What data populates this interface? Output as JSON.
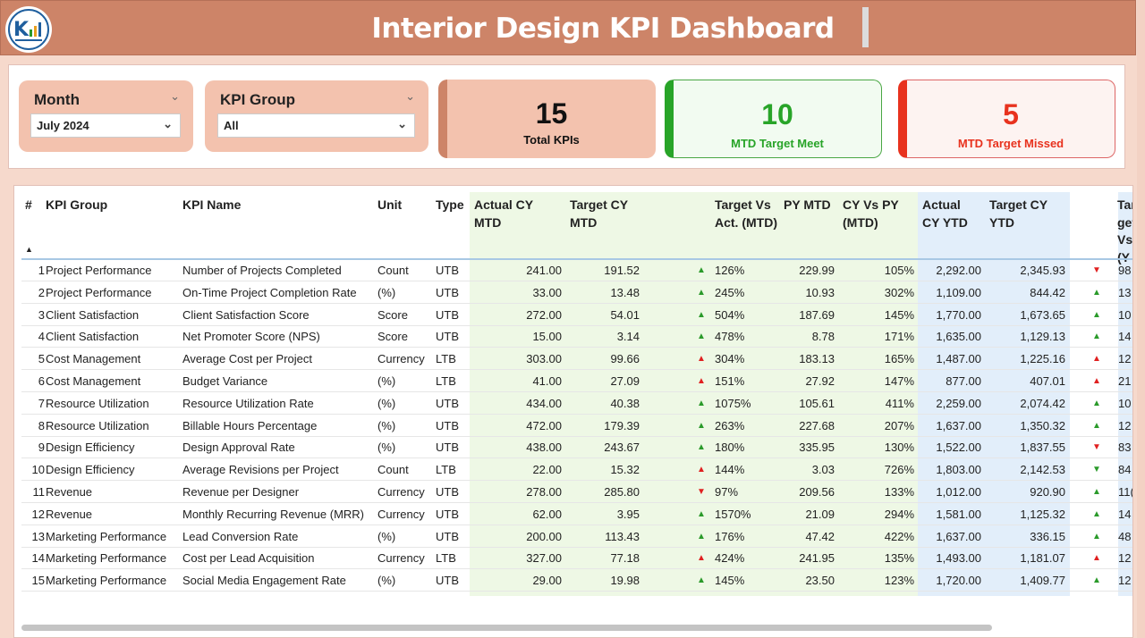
{
  "header": {
    "title": "Interior Design KPI Dashboard"
  },
  "filters": {
    "month": {
      "label": "Month",
      "value": "July 2024"
    },
    "kpi_group": {
      "label": "KPI Group",
      "value": "All"
    }
  },
  "cards": {
    "total": {
      "value": "15",
      "caption": "Total KPIs"
    },
    "meet": {
      "value": "10",
      "caption": "MTD Target Meet"
    },
    "missed": {
      "value": "5",
      "caption": "MTD Target Missed"
    }
  },
  "colors": {
    "header_bg": "#cd8468",
    "accent_light": "#f3c2ae",
    "meet_green": "#28a428",
    "missed_red": "#e8321e",
    "mtd_column_bg": "#eef8e5",
    "ytd_column_bg": "#e2eefa"
  },
  "table": {
    "columns": {
      "num": "#",
      "group": "KPI Group",
      "name": "KPI Name",
      "unit": "Unit",
      "type": "Type",
      "actual_mtd": "Actual CY MTD",
      "target_mtd": "Target CY MTD",
      "tva_mtd": "Target Vs Act. (MTD)",
      "py_mtd": "PY MTD",
      "cyvspy_mtd": "CY Vs PY (MTD)",
      "actual_ytd": "Actual CY YTD",
      "target_ytd": "Target CY YTD",
      "tva_ytd": "Target Vs (Y"
    },
    "rows": [
      {
        "num": "1",
        "group": "Project Performance",
        "name": "Number of Projects Completed",
        "unit": "Count",
        "type": "UTB",
        "actual_mtd": "241.00",
        "target_mtd": "191.52",
        "mtd_icon": "up-green",
        "tva_mtd": "126%",
        "py_mtd": "229.99",
        "cyvspy_mtd": "105%",
        "actual_ytd": "2,292.00",
        "target_ytd": "2,345.93",
        "ytd_icon": "down-red",
        "tva_ytd": "98"
      },
      {
        "num": "2",
        "group": "Project Performance",
        "name": "On-Time Project Completion Rate",
        "unit": "(%)",
        "type": "UTB",
        "actual_mtd": "33.00",
        "target_mtd": "13.48",
        "mtd_icon": "up-green",
        "tva_mtd": "245%",
        "py_mtd": "10.93",
        "cyvspy_mtd": "302%",
        "actual_ytd": "1,109.00",
        "target_ytd": "844.42",
        "ytd_icon": "up-green",
        "tva_ytd": "13"
      },
      {
        "num": "3",
        "group": "Client Satisfaction",
        "name": "Client Satisfaction Score",
        "unit": "Score",
        "type": "UTB",
        "actual_mtd": "272.00",
        "target_mtd": "54.01",
        "mtd_icon": "up-green",
        "tva_mtd": "504%",
        "py_mtd": "187.69",
        "cyvspy_mtd": "145%",
        "actual_ytd": "1,770.00",
        "target_ytd": "1,673.65",
        "ytd_icon": "up-green",
        "tva_ytd": "10"
      },
      {
        "num": "4",
        "group": "Client Satisfaction",
        "name": "Net Promoter Score (NPS)",
        "unit": "Score",
        "type": "UTB",
        "actual_mtd": "15.00",
        "target_mtd": "3.14",
        "mtd_icon": "up-green",
        "tva_mtd": "478%",
        "py_mtd": "8.78",
        "cyvspy_mtd": "171%",
        "actual_ytd": "1,635.00",
        "target_ytd": "1,129.13",
        "ytd_icon": "up-green",
        "tva_ytd": "14"
      },
      {
        "num": "5",
        "group": "Cost Management",
        "name": "Average Cost per Project",
        "unit": "Currency",
        "type": "LTB",
        "actual_mtd": "303.00",
        "target_mtd": "99.66",
        "mtd_icon": "up-red",
        "tva_mtd": "304%",
        "py_mtd": "183.13",
        "cyvspy_mtd": "165%",
        "actual_ytd": "1,487.00",
        "target_ytd": "1,225.16",
        "ytd_icon": "up-red",
        "tva_ytd": "12"
      },
      {
        "num": "6",
        "group": "Cost Management",
        "name": "Budget Variance",
        "unit": "(%)",
        "type": "LTB",
        "actual_mtd": "41.00",
        "target_mtd": "27.09",
        "mtd_icon": "up-red",
        "tva_mtd": "151%",
        "py_mtd": "27.92",
        "cyvspy_mtd": "147%",
        "actual_ytd": "877.00",
        "target_ytd": "407.01",
        "ytd_icon": "up-red",
        "tva_ytd": "21"
      },
      {
        "num": "7",
        "group": "Resource Utilization",
        "name": "Resource Utilization Rate",
        "unit": "(%)",
        "type": "UTB",
        "actual_mtd": "434.00",
        "target_mtd": "40.38",
        "mtd_icon": "up-green",
        "tva_mtd": "1075%",
        "py_mtd": "105.61",
        "cyvspy_mtd": "411%",
        "actual_ytd": "2,259.00",
        "target_ytd": "2,074.42",
        "ytd_icon": "up-green",
        "tva_ytd": "10"
      },
      {
        "num": "8",
        "group": "Resource Utilization",
        "name": "Billable Hours Percentage",
        "unit": "(%)",
        "type": "UTB",
        "actual_mtd": "472.00",
        "target_mtd": "179.39",
        "mtd_icon": "up-green",
        "tva_mtd": "263%",
        "py_mtd": "227.68",
        "cyvspy_mtd": "207%",
        "actual_ytd": "1,637.00",
        "target_ytd": "1,350.32",
        "ytd_icon": "up-green",
        "tva_ytd": "12"
      },
      {
        "num": "9",
        "group": "Design Efficiency",
        "name": "Design Approval Rate",
        "unit": "(%)",
        "type": "UTB",
        "actual_mtd": "438.00",
        "target_mtd": "243.67",
        "mtd_icon": "up-green",
        "tva_mtd": "180%",
        "py_mtd": "335.95",
        "cyvspy_mtd": "130%",
        "actual_ytd": "1,522.00",
        "target_ytd": "1,837.55",
        "ytd_icon": "down-red",
        "tva_ytd": "83"
      },
      {
        "num": "10",
        "group": "Design Efficiency",
        "name": "Average Revisions per Project",
        "unit": "Count",
        "type": "LTB",
        "actual_mtd": "22.00",
        "target_mtd": "15.32",
        "mtd_icon": "up-red",
        "tva_mtd": "144%",
        "py_mtd": "3.03",
        "cyvspy_mtd": "726%",
        "actual_ytd": "1,803.00",
        "target_ytd": "2,142.53",
        "ytd_icon": "down-green",
        "tva_ytd": "84"
      },
      {
        "num": "11",
        "group": "Revenue",
        "name": "Revenue per Designer",
        "unit": "Currency",
        "type": "UTB",
        "actual_mtd": "278.00",
        "target_mtd": "285.80",
        "mtd_icon": "down-red",
        "tva_mtd": "97%",
        "py_mtd": "209.56",
        "cyvspy_mtd": "133%",
        "actual_ytd": "1,012.00",
        "target_ytd": "920.90",
        "ytd_icon": "up-green",
        "tva_ytd": "11("
      },
      {
        "num": "12",
        "group": "Revenue",
        "name": "Monthly Recurring Revenue (MRR)",
        "unit": "Currency",
        "type": "UTB",
        "actual_mtd": "62.00",
        "target_mtd": "3.95",
        "mtd_icon": "up-green",
        "tva_mtd": "1570%",
        "py_mtd": "21.09",
        "cyvspy_mtd": "294%",
        "actual_ytd": "1,581.00",
        "target_ytd": "1,125.32",
        "ytd_icon": "up-green",
        "tva_ytd": "14"
      },
      {
        "num": "13",
        "group": "Marketing Performance",
        "name": "Lead Conversion Rate",
        "unit": "(%)",
        "type": "UTB",
        "actual_mtd": "200.00",
        "target_mtd": "113.43",
        "mtd_icon": "up-green",
        "tva_mtd": "176%",
        "py_mtd": "47.42",
        "cyvspy_mtd": "422%",
        "actual_ytd": "1,637.00",
        "target_ytd": "336.15",
        "ytd_icon": "up-green",
        "tva_ytd": "48"
      },
      {
        "num": "14",
        "group": "Marketing Performance",
        "name": "Cost per Lead Acquisition",
        "unit": "Currency",
        "type": "LTB",
        "actual_mtd": "327.00",
        "target_mtd": "77.18",
        "mtd_icon": "up-red",
        "tva_mtd": "424%",
        "py_mtd": "241.95",
        "cyvspy_mtd": "135%",
        "actual_ytd": "1,493.00",
        "target_ytd": "1,181.07",
        "ytd_icon": "up-red",
        "tva_ytd": "12"
      },
      {
        "num": "15",
        "group": "Marketing Performance",
        "name": "Social Media Engagement Rate",
        "unit": "(%)",
        "type": "UTB",
        "actual_mtd": "29.00",
        "target_mtd": "19.98",
        "mtd_icon": "up-green",
        "tva_mtd": "145%",
        "py_mtd": "23.50",
        "cyvspy_mtd": "123%",
        "actual_ytd": "1,720.00",
        "target_ytd": "1,409.77",
        "ytd_icon": "up-green",
        "tva_ytd": "12"
      }
    ]
  }
}
